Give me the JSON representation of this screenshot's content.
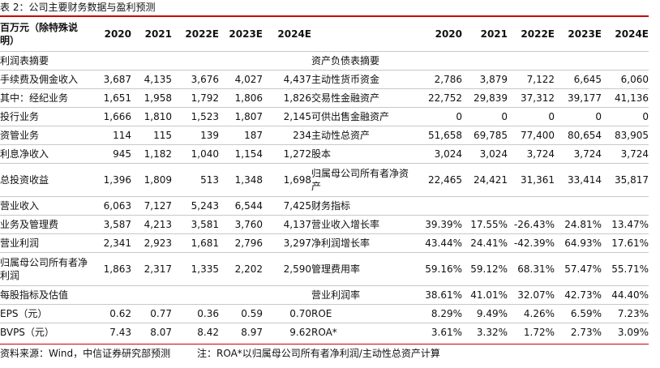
{
  "caption": "表 2：公司主要财务数据与盈利预测",
  "header": {
    "left_label": "百万元（除特殊说明）",
    "years": [
      "2020",
      "2021",
      "2022E",
      "2023E",
      "2024E"
    ]
  },
  "left_rows": [
    {
      "label": "利润表摘要",
      "values": [
        "",
        "",
        "",
        "",
        ""
      ]
    },
    {
      "label": "手续费及佣金收入",
      "values": [
        "3,687",
        "4,135",
        "3,676",
        "4,027",
        "4,437"
      ]
    },
    {
      "label": "其中：经纪业务",
      "values": [
        "1,651",
        "1,958",
        "1,792",
        "1,806",
        "1,826"
      ]
    },
    {
      "label": "投行业务",
      "values": [
        "1,666",
        "1,810",
        "1,523",
        "1,807",
        "2,145"
      ]
    },
    {
      "label": "资管业务",
      "values": [
        "114",
        "115",
        "139",
        "187",
        "234"
      ]
    },
    {
      "label": "利息净收入",
      "values": [
        "945",
        "1,182",
        "1,040",
        "1,154",
        "1,272"
      ]
    },
    {
      "label": "总投资收益",
      "values": [
        "1,396",
        "1,809",
        "513",
        "1,348",
        "1,698"
      ]
    },
    {
      "label": "营业收入",
      "values": [
        "6,063",
        "7,127",
        "5,243",
        "6,544",
        "7,425"
      ]
    },
    {
      "label": "业务及管理费",
      "values": [
        "3,587",
        "4,213",
        "3,581",
        "3,760",
        "4,137"
      ]
    },
    {
      "label": "营业利润",
      "values": [
        "2,341",
        "2,923",
        "1,681",
        "2,796",
        "3,297"
      ]
    },
    {
      "label": "归属母公司所有者净利润",
      "values": [
        "1,863",
        "2,317",
        "1,335",
        "2,202",
        "2,590"
      ]
    },
    {
      "label": "每股指标及估值",
      "values": [
        "",
        "",
        "",
        "",
        ""
      ]
    },
    {
      "label": "EPS（元）",
      "values": [
        "0.62",
        "0.77",
        "0.36",
        "0.59",
        "0.70"
      ]
    },
    {
      "label": "BVPS（元）",
      "values": [
        "7.43",
        "8.07",
        "8.42",
        "8.97",
        "9.62"
      ]
    }
  ],
  "right_rows": [
    {
      "label": "资产负债表摘要",
      "values": [
        "",
        "",
        "",
        "",
        ""
      ]
    },
    {
      "label": "主动性货币资金",
      "values": [
        "2,786",
        "3,879",
        "7,122",
        "6,645",
        "6,060"
      ]
    },
    {
      "label": "交易性金融资产",
      "values": [
        "22,752",
        "29,839",
        "37,312",
        "39,177",
        "41,136"
      ]
    },
    {
      "label": "可供出售金融资产",
      "values": [
        "0",
        "0",
        "0",
        "0",
        "0"
      ]
    },
    {
      "label": "主动性总资产",
      "values": [
        "51,658",
        "69,785",
        "77,400",
        "80,654",
        "83,905"
      ]
    },
    {
      "label": "股本",
      "values": [
        "3,024",
        "3,024",
        "3,724",
        "3,724",
        "3,724"
      ]
    },
    {
      "label": "归属母公司所有者净资产",
      "values": [
        "22,465",
        "24,421",
        "31,361",
        "33,414",
        "35,817"
      ]
    },
    {
      "label": "财务指标",
      "values": [
        "",
        "",
        "",
        "",
        ""
      ]
    },
    {
      "label": "营业收入增长率",
      "values": [
        "39.39%",
        "17.55%",
        "-26.43%",
        "24.81%",
        "13.47%"
      ]
    },
    {
      "label": "净利润增长率",
      "values": [
        "43.44%",
        "24.41%",
        "-42.39%",
        "64.93%",
        "17.61%"
      ]
    },
    {
      "label": "管理费用率",
      "values": [
        "59.16%",
        "59.12%",
        "68.31%",
        "57.47%",
        "55.71%"
      ]
    },
    {
      "label": "营业利润率",
      "values": [
        "38.61%",
        "41.01%",
        "32.07%",
        "42.73%",
        "44.40%"
      ]
    },
    {
      "label": "ROE",
      "values": [
        "8.29%",
        "9.49%",
        "4.26%",
        "6.59%",
        "7.23%"
      ]
    },
    {
      "label": "ROA*",
      "values": [
        "3.61%",
        "3.32%",
        "1.72%",
        "2.73%",
        "3.09%"
      ]
    }
  ],
  "footer": {
    "source": "资料来源：Wind，中信证券研究部预测",
    "note": "注：ROA*以归属母公司所有者净利润/主动性总资产计算"
  },
  "colors": {
    "accent_rule": "#cc0000",
    "divider": "#c8c8c8"
  }
}
